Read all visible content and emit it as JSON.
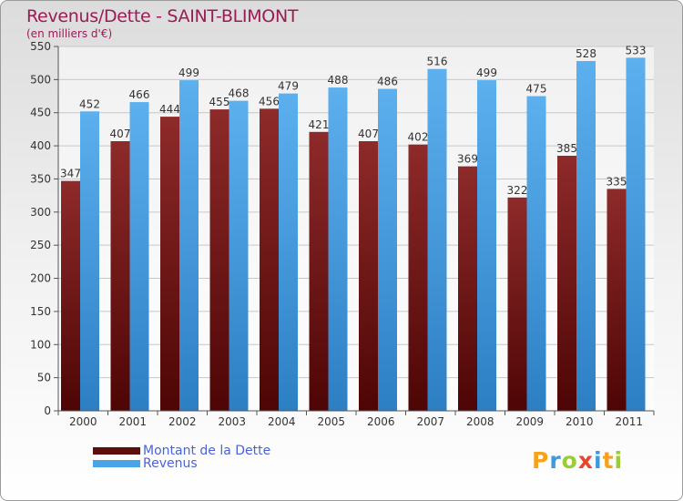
{
  "chart_data": {
    "type": "bar",
    "title": "Revenus/Dette - SAINT-BLIMONT",
    "subtitle": "(en milliers d'€)",
    "categories": [
      "2000",
      "2001",
      "2002",
      "2003",
      "2004",
      "2005",
      "2006",
      "2007",
      "2008",
      "2009",
      "2010",
      "2011"
    ],
    "series": [
      {
        "name": "Montant de la Dette",
        "color": "#7a1515",
        "values": [
          347,
          407,
          444,
          455,
          456,
          421,
          407,
          402,
          369,
          322,
          385,
          335
        ]
      },
      {
        "name": "Revenus",
        "color": "#4aa3e6",
        "values": [
          452,
          466,
          499,
          468,
          479,
          488,
          486,
          516,
          499,
          475,
          528,
          533
        ]
      }
    ],
    "ylim": [
      0,
      550
    ],
    "yticks": [
      0,
      50,
      100,
      150,
      200,
      250,
      300,
      350,
      400,
      450,
      500,
      550
    ],
    "grid": true,
    "legend_position": "bottom-left"
  },
  "logo": {
    "letters": [
      "P",
      "r",
      "o",
      "x",
      "i",
      "t",
      "i"
    ],
    "colors": [
      "#f7a21b",
      "#3a9be0",
      "#9acd32",
      "#e8452c",
      "#3a9be0",
      "#f7a21b",
      "#9acd32"
    ]
  }
}
